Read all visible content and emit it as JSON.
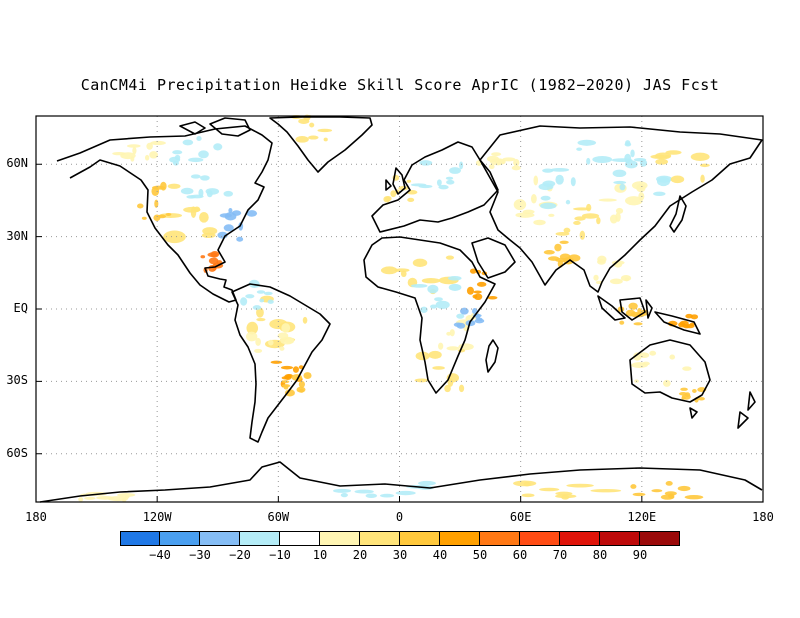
{
  "title": "CanCM4i Precipitation Heidke Skill Score AprIC (1982−2020) JAS Fcst",
  "lat_labels": [
    "60N",
    "30N",
    "EQ",
    "30S",
    "60S"
  ],
  "lon_labels": [
    "180",
    "120W",
    "60W",
    "0",
    "60E",
    "120E",
    "180"
  ],
  "colorbar": {
    "colors": [
      "#1f78e6",
      "#4a9ff0",
      "#85bdf5",
      "#b4ecf7",
      "#ffffff",
      "#fff5b3",
      "#ffe47a",
      "#ffc83c",
      "#ffa000",
      "#ff7814",
      "#ff4c14",
      "#e0140a",
      "#be0a0a",
      "#9b0a0a"
    ],
    "labels": [
      "−40",
      "−30",
      "−20",
      "−10",
      "10",
      "20",
      "30",
      "40",
      "50",
      "60",
      "70",
      "80",
      "90"
    ]
  },
  "map_data": {
    "projection": "cylindrical-equidistant",
    "lon_range": [
      -180,
      180
    ],
    "lat_range": [
      -80,
      80
    ],
    "lat_ticks": [
      60,
      30,
      0,
      -30,
      -60
    ],
    "lon_ticks": [
      -180,
      -120,
      -60,
      0,
      60,
      120,
      180
    ],
    "grid": "dotted"
  }
}
